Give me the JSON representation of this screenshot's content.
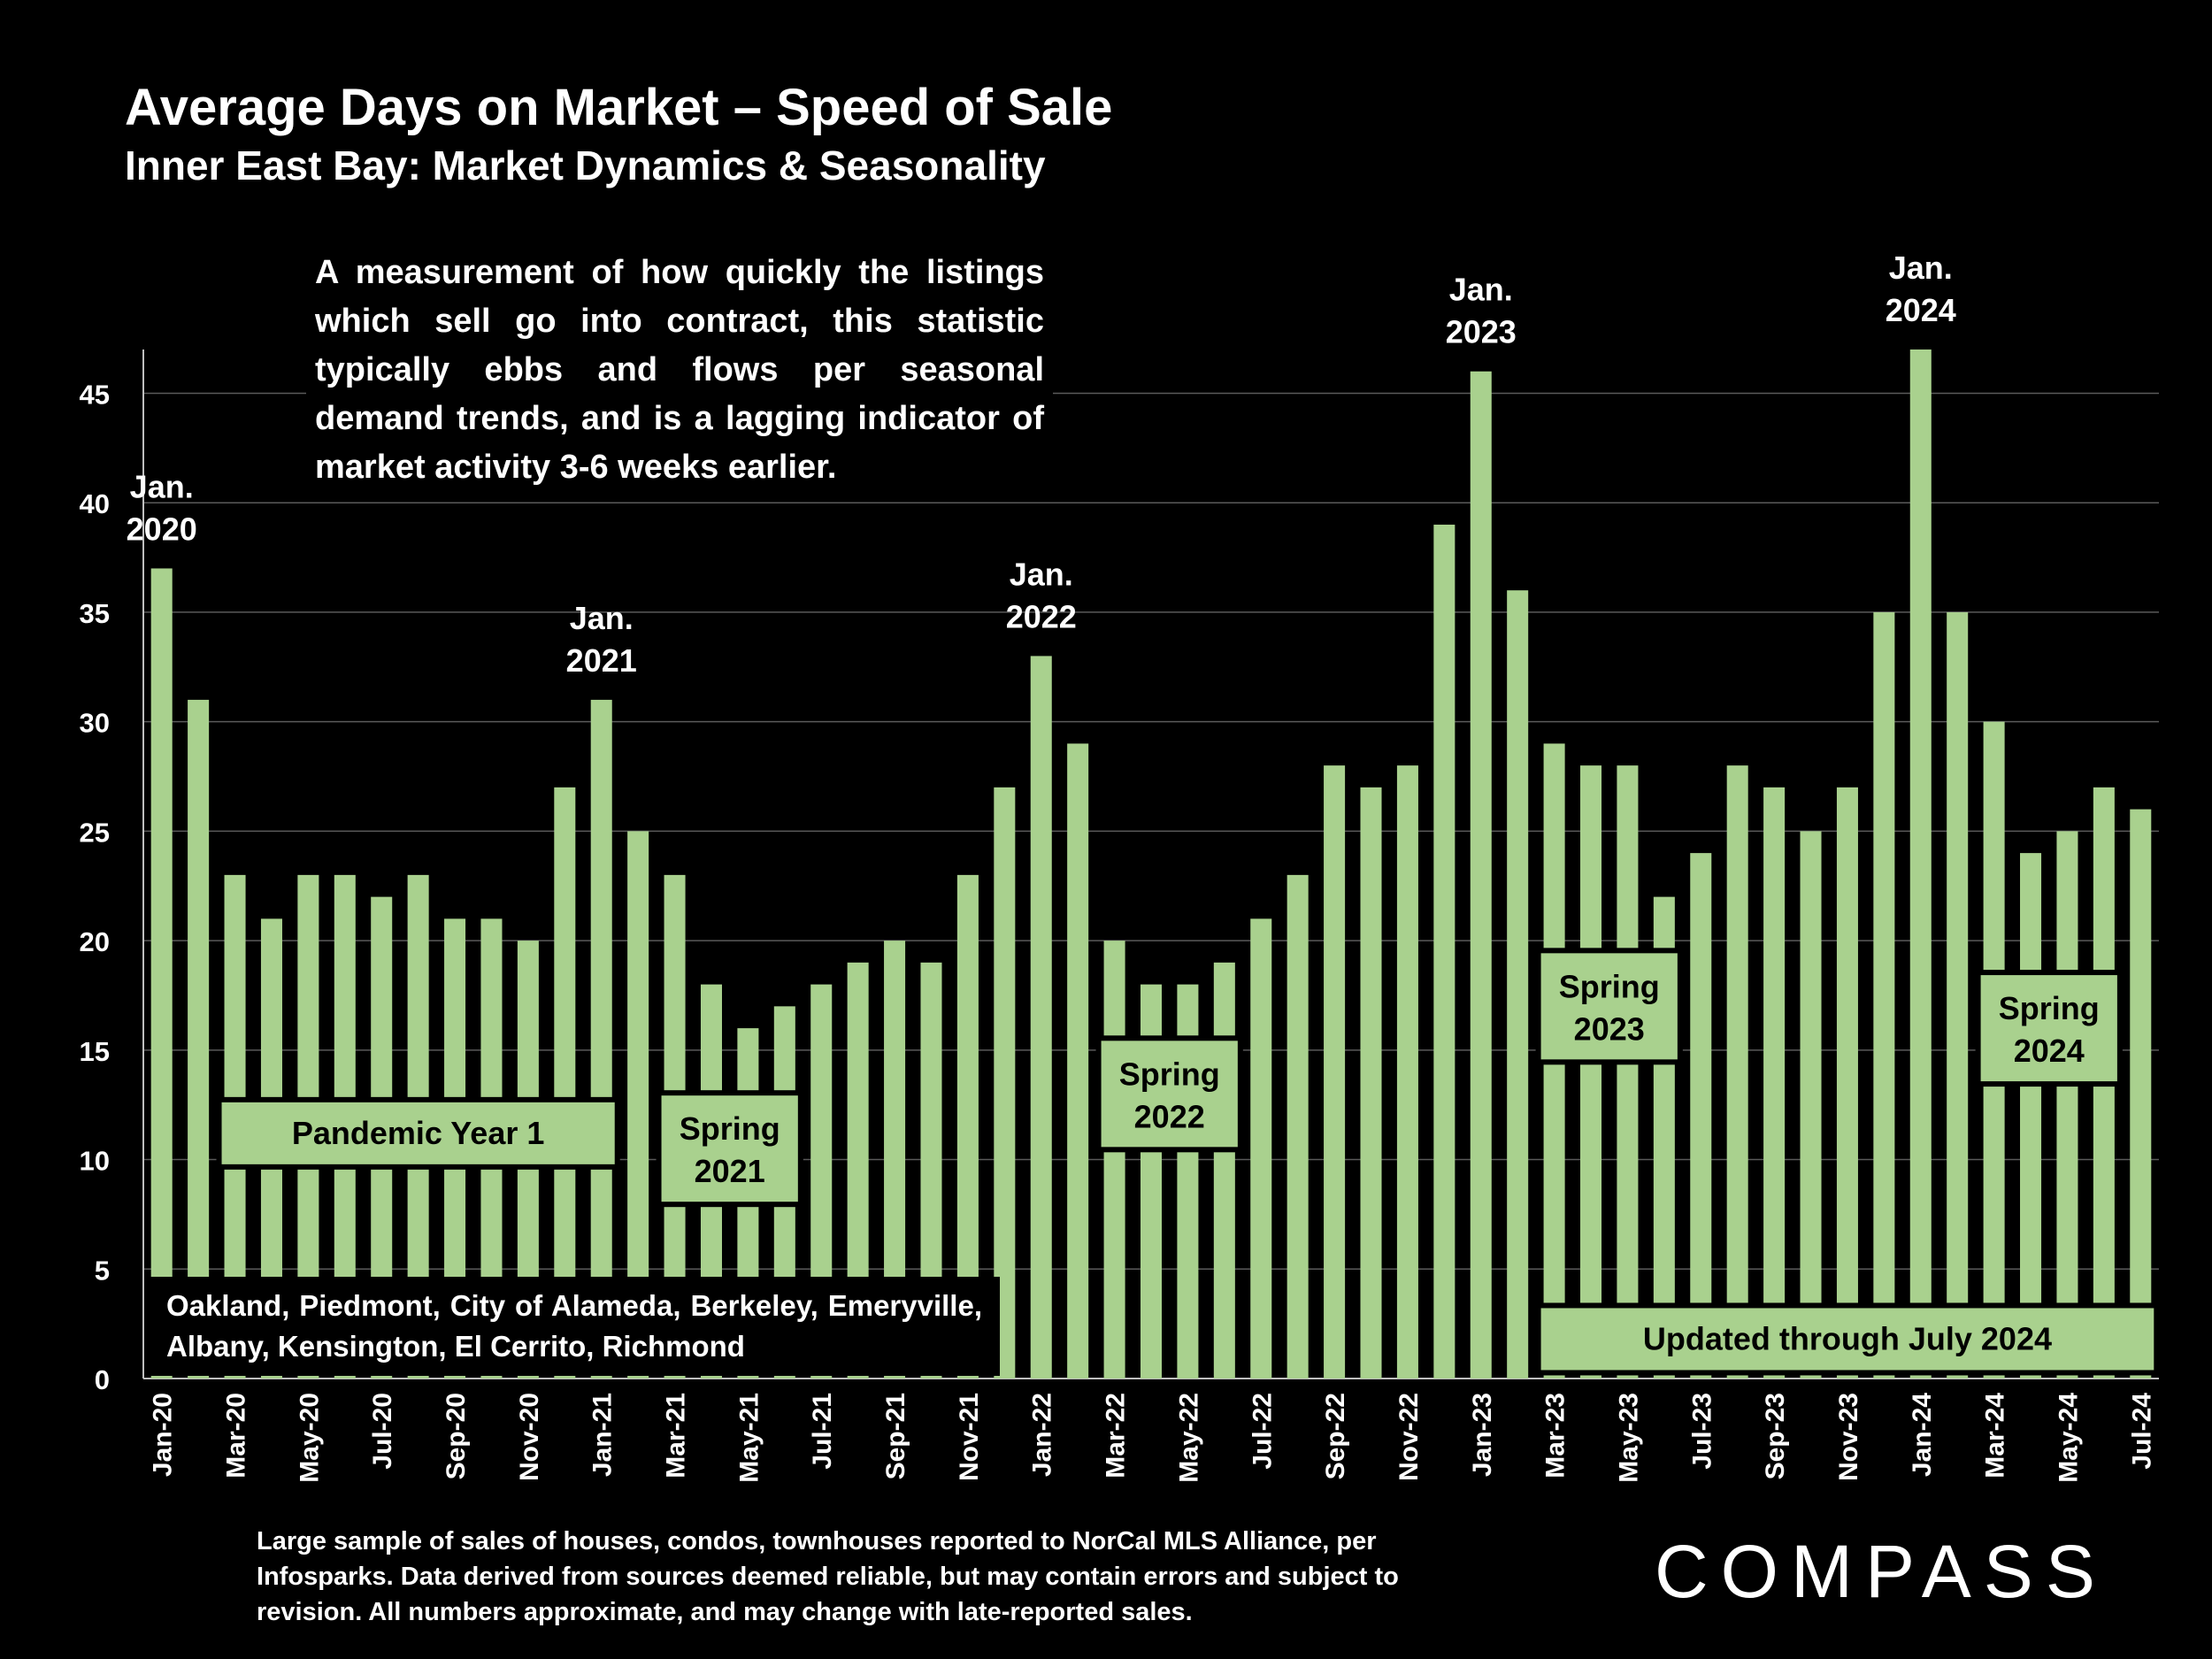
{
  "title": "Average Days on Market – Speed of Sale",
  "subtitle": "Inner East Bay: Market Dynamics & Seasonality",
  "description": "A measurement of how quickly the listings which sell go into contract, this statistic typically ebbs and flows per seasonal demand trends, and is a lagging indicator of market activity 3-6 weeks earlier.",
  "region_note": "Oakland, Piedmont, City of Alameda, Berkeley, Emeryville, Albany, Kensington, El Cerrito, Richmond",
  "footer": "Large sample of sales of houses, condos, townhouses reported to NorCal MLS Alliance, per Infosparks. Data derived from sources deemed reliable, but may contain errors and subject to revision. All numbers approximate, and may change with late-reported sales.",
  "logo": "COMPASS",
  "colors": {
    "background": "#000000",
    "bar": "#a9d18e",
    "text": "#ffffff",
    "grid": "#5a5a5a",
    "label_text": "#000000"
  },
  "chart_data": {
    "type": "bar",
    "ylim": [
      0,
      47
    ],
    "yticks": [
      0,
      5,
      10,
      15,
      20,
      25,
      30,
      35,
      40,
      45
    ],
    "grid": true,
    "categories": [
      "Jan-20",
      "Feb-20",
      "Mar-20",
      "Apr-20",
      "May-20",
      "Jun-20",
      "Jul-20",
      "Aug-20",
      "Sep-20",
      "Oct-20",
      "Nov-20",
      "Dec-20",
      "Jan-21",
      "Feb-21",
      "Mar-21",
      "Apr-21",
      "May-21",
      "Jun-21",
      "Jul-21",
      "Aug-21",
      "Sep-21",
      "Oct-21",
      "Nov-21",
      "Dec-21",
      "Jan-22",
      "Feb-22",
      "Mar-22",
      "Apr-22",
      "May-22",
      "Jun-22",
      "Jul-22",
      "Aug-22",
      "Sep-22",
      "Oct-22",
      "Nov-22",
      "Dec-22",
      "Jan-23",
      "Feb-23",
      "Mar-23",
      "Apr-23",
      "May-23",
      "Jun-23",
      "Jul-23",
      "Aug-23",
      "Sep-23",
      "Oct-23",
      "Nov-23",
      "Dec-23",
      "Jan-24",
      "Feb-24",
      "Mar-24",
      "Apr-24",
      "May-24",
      "Jun-24",
      "Jul-24"
    ],
    "values": [
      37,
      31,
      23,
      21,
      23,
      23,
      22,
      23,
      21,
      21,
      20,
      27,
      31,
      25,
      23,
      18,
      16,
      17,
      18,
      19,
      20,
      19,
      23,
      27,
      33,
      29,
      20,
      18,
      18,
      19,
      21,
      23,
      28,
      27,
      28,
      39,
      46,
      36,
      29,
      28,
      28,
      22,
      24,
      28,
      27,
      25,
      27,
      35,
      47,
      35,
      30,
      24,
      25,
      27,
      26
    ],
    "label_every": 2,
    "period_annotations": [
      {
        "text": "Jan. 2020",
        "index": 0
      },
      {
        "text": "Jan. 2021",
        "index": 12
      },
      {
        "text": "Jan. 2022",
        "index": 24
      },
      {
        "text": "Jan. 2023",
        "index": 36
      },
      {
        "text": "Jan. 2024",
        "index": 48
      }
    ],
    "band_labels": [
      {
        "text": "Pandemic Year 1",
        "from": 2,
        "to": 12
      },
      {
        "text": "Spring 2021",
        "from": 14,
        "to": 17
      },
      {
        "text": "Spring 2022",
        "from": 26,
        "to": 29
      },
      {
        "text": "Spring 2023",
        "from": 38,
        "to": 41
      },
      {
        "text": "Spring 2024",
        "from": 50,
        "to": 53
      },
      {
        "text": "Updated through July 2024",
        "from": 38,
        "to": 54
      }
    ]
  }
}
